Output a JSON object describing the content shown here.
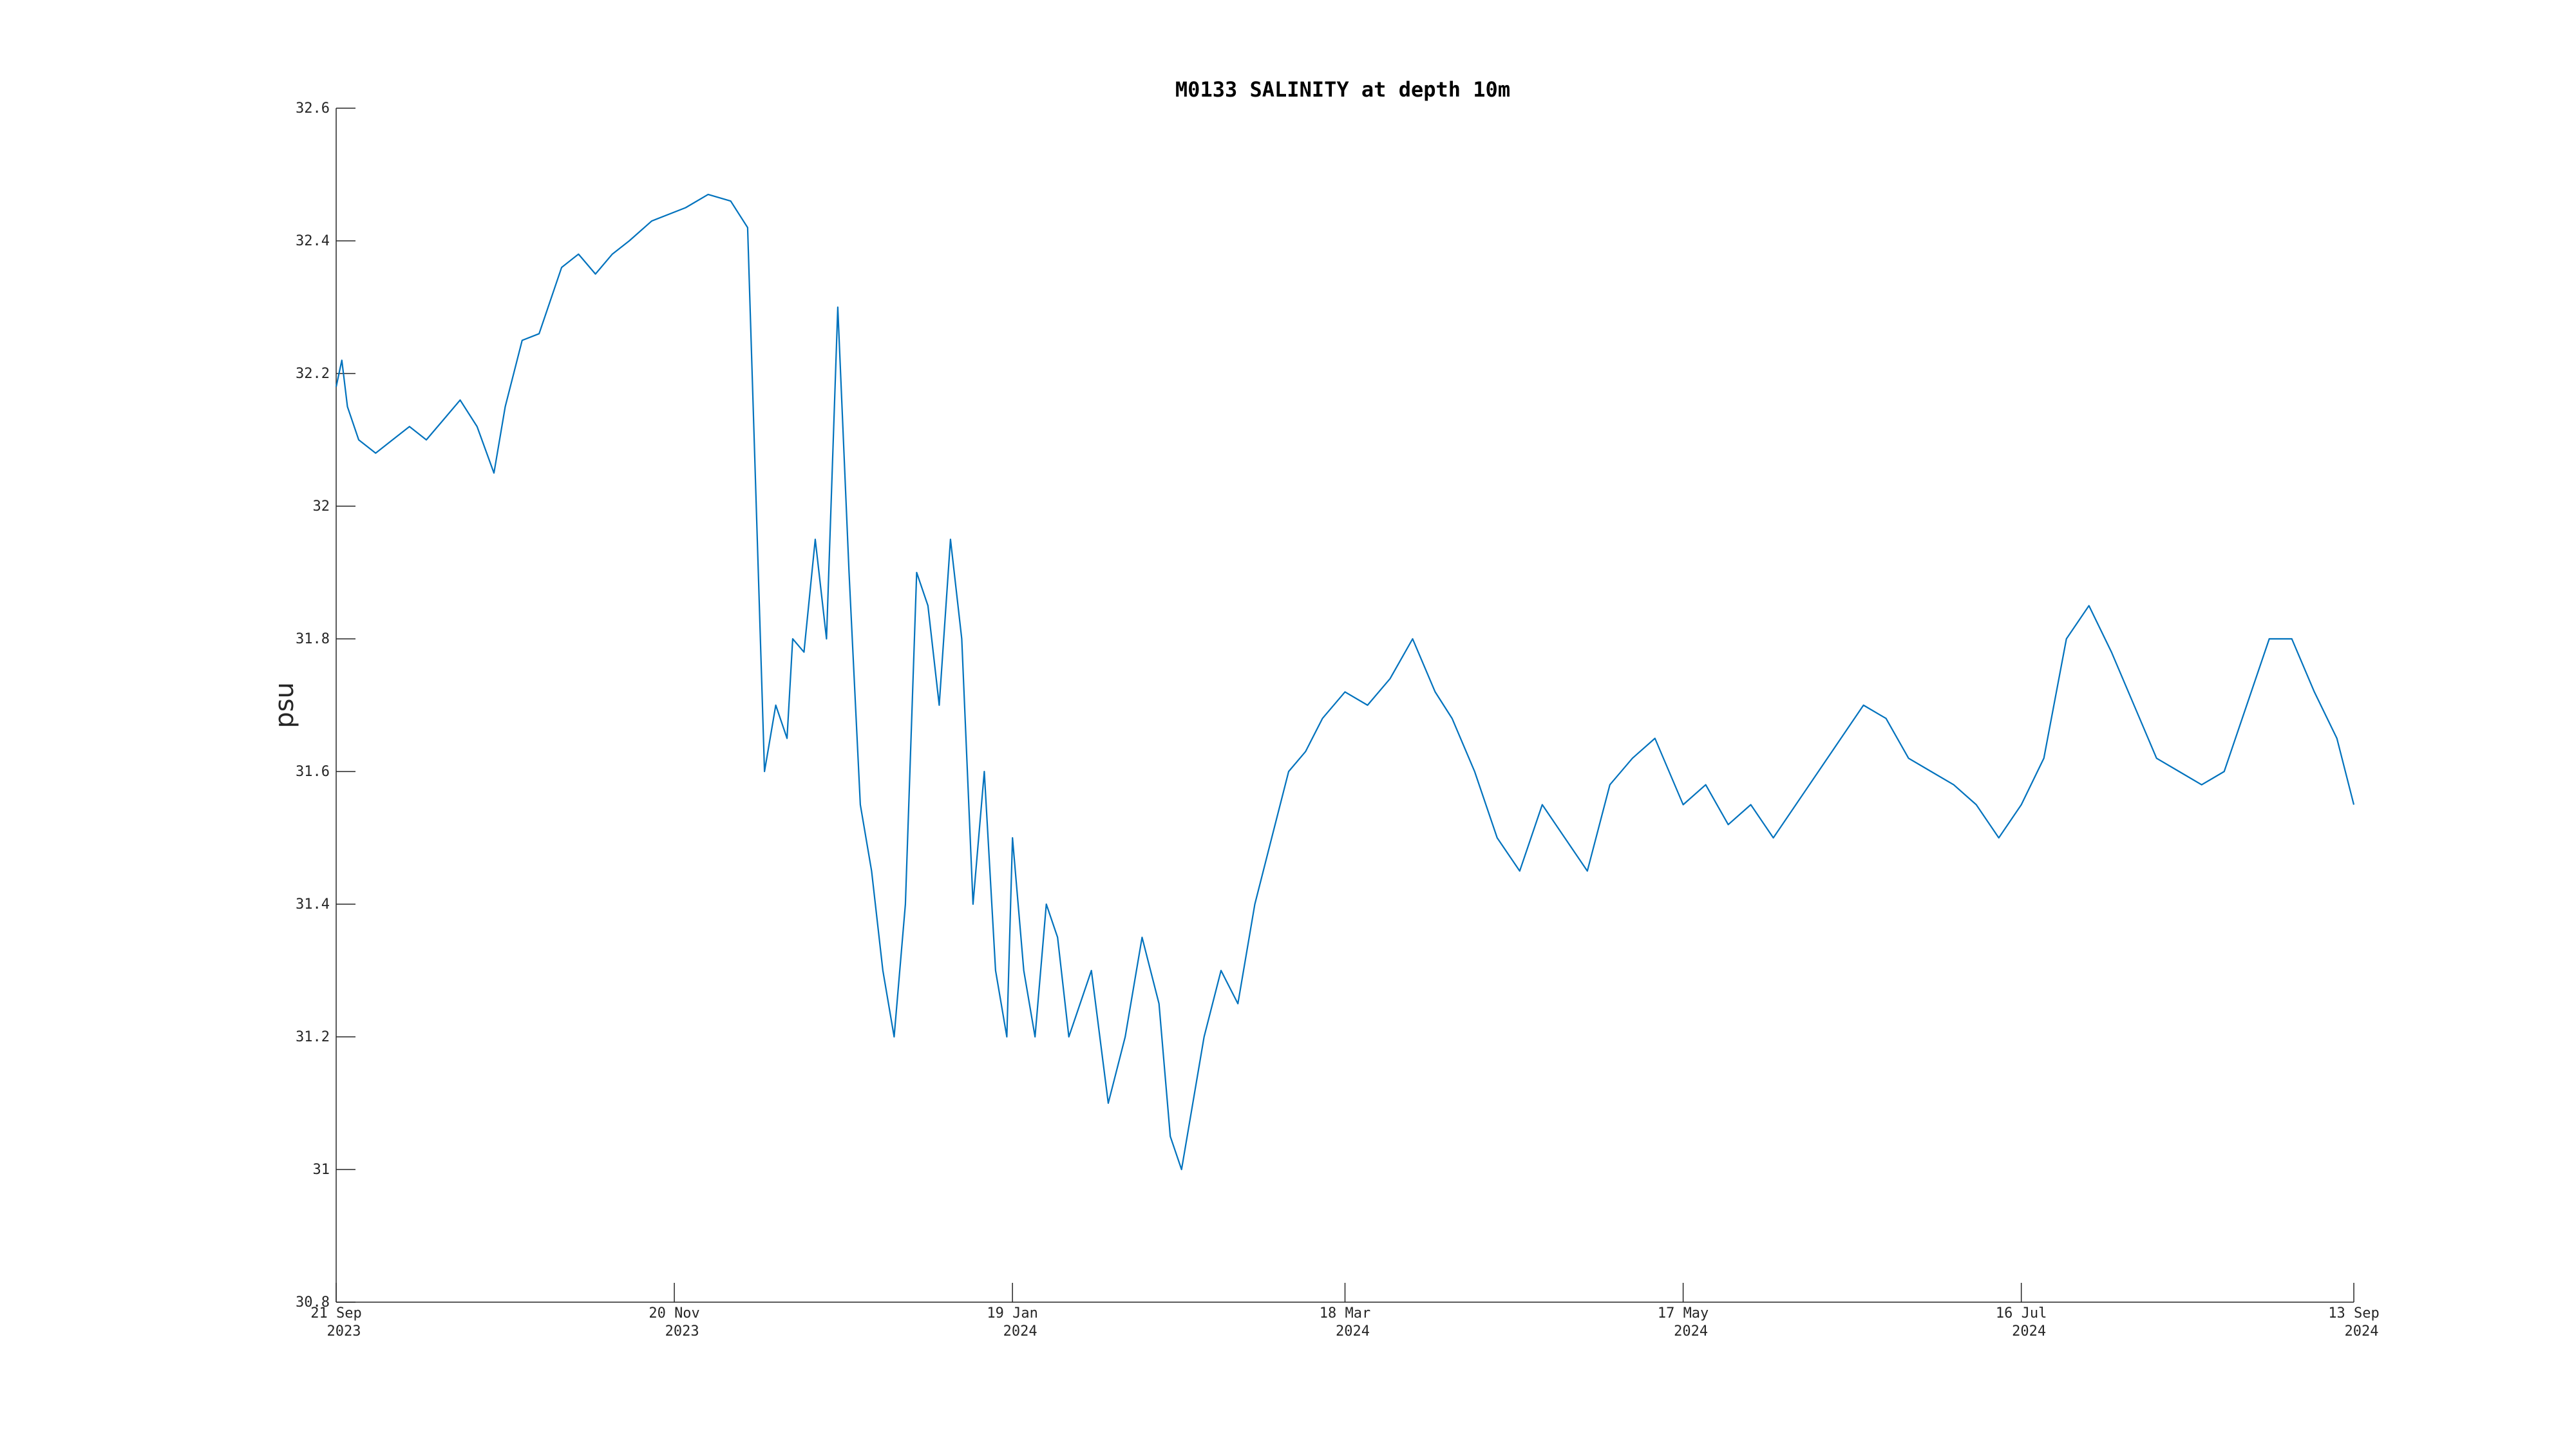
{
  "chart_data": {
    "type": "line",
    "title": "M0133 SALINITY at depth 10m",
    "xlabel": "",
    "ylabel": "psu",
    "xlim": [
      "2023-09-21",
      "2024-09-13"
    ],
    "ylim": [
      30.8,
      32.6
    ],
    "grid": false,
    "line_color": "#0072BD",
    "y_ticks": [
      {
        "value": 30.8,
        "label": "30.8"
      },
      {
        "value": 31.0,
        "label": "31"
      },
      {
        "value": 31.2,
        "label": "31.2"
      },
      {
        "value": 31.4,
        "label": "31.4"
      },
      {
        "value": 31.6,
        "label": "31.6"
      },
      {
        "value": 31.8,
        "label": "31.8"
      },
      {
        "value": 32.0,
        "label": "32"
      },
      {
        "value": 32.2,
        "label": "32.2"
      },
      {
        "value": 32.4,
        "label": "32.4"
      },
      {
        "value": 32.6,
        "label": "32.6"
      }
    ],
    "x_ticks": [
      {
        "date": "2023-09-21",
        "label": "21 Sep",
        "year": "2023"
      },
      {
        "date": "2023-11-20",
        "label": "20 Nov",
        "year": "2023"
      },
      {
        "date": "2024-01-19",
        "label": "19 Jan",
        "year": "2024"
      },
      {
        "date": "2024-03-18",
        "label": "18 Mar",
        "year": "2024"
      },
      {
        "date": "2024-05-17",
        "label": "17 May",
        "year": "2024"
      },
      {
        "date": "2024-07-16",
        "label": "16 Jul",
        "year": "2024"
      },
      {
        "date": "2024-09-13",
        "label": "13 Sep",
        "year": "2024"
      }
    ],
    "series": [
      {
        "x": [
          "2023-09-21",
          "2023-09-22",
          "2023-09-23",
          "2023-09-25",
          "2023-09-28",
          "2023-10-01",
          "2023-10-04",
          "2023-10-07",
          "2023-10-10",
          "2023-10-13",
          "2023-10-16",
          "2023-10-19",
          "2023-10-21",
          "2023-10-24",
          "2023-10-27",
          "2023-10-31",
          "2023-11-03",
          "2023-11-06",
          "2023-11-09",
          "2023-11-12",
          "2023-11-16",
          "2023-11-22",
          "2023-11-26",
          "2023-11-30",
          "2023-12-03",
          "2023-12-06",
          "2023-12-08",
          "2023-12-10",
          "2023-12-11",
          "2023-12-13",
          "2023-12-15",
          "2023-12-17",
          "2023-12-19",
          "2023-12-21",
          "2023-12-23",
          "2023-12-25",
          "2023-12-27",
          "2023-12-29",
          "2023-12-31",
          "2024-01-02",
          "2024-01-04",
          "2024-01-06",
          "2024-01-08",
          "2024-01-10",
          "2024-01-12",
          "2024-01-14",
          "2024-01-16",
          "2024-01-18",
          "2024-01-19",
          "2024-01-21",
          "2024-01-23",
          "2024-01-25",
          "2024-01-27",
          "2024-01-29",
          "2024-01-31",
          "2024-02-02",
          "2024-02-05",
          "2024-02-08",
          "2024-02-11",
          "2024-02-14",
          "2024-02-16",
          "2024-02-18",
          "2024-02-20",
          "2024-02-22",
          "2024-02-25",
          "2024-02-28",
          "2024-03-02",
          "2024-03-05",
          "2024-03-08",
          "2024-03-11",
          "2024-03-14",
          "2024-03-18",
          "2024-03-22",
          "2024-03-26",
          "2024-03-30",
          "2024-04-03",
          "2024-04-06",
          "2024-04-10",
          "2024-04-14",
          "2024-04-18",
          "2024-04-22",
          "2024-04-26",
          "2024-04-30",
          "2024-05-04",
          "2024-05-08",
          "2024-05-12",
          "2024-05-17",
          "2024-05-21",
          "2024-05-25",
          "2024-05-29",
          "2024-06-02",
          "2024-06-06",
          "2024-06-10",
          "2024-06-14",
          "2024-06-18",
          "2024-06-22",
          "2024-06-26",
          "2024-06-30",
          "2024-07-04",
          "2024-07-08",
          "2024-07-12",
          "2024-07-16",
          "2024-07-20",
          "2024-07-24",
          "2024-07-28",
          "2024-08-01",
          "2024-08-05",
          "2024-08-09",
          "2024-08-13",
          "2024-08-17",
          "2024-08-21",
          "2024-08-25",
          "2024-08-29",
          "2024-09-02",
          "2024-09-06",
          "2024-09-10",
          "2024-09-13"
        ],
        "y": [
          32.18,
          32.22,
          32.15,
          32.1,
          32.08,
          32.1,
          32.12,
          32.1,
          32.13,
          32.16,
          32.12,
          32.05,
          32.15,
          32.25,
          32.26,
          32.36,
          32.38,
          32.35,
          32.38,
          32.4,
          32.43,
          32.45,
          32.47,
          32.46,
          32.42,
          31.6,
          31.7,
          31.65,
          31.8,
          31.78,
          31.95,
          31.8,
          32.3,
          31.9,
          31.55,
          31.45,
          31.3,
          31.2,
          31.4,
          31.9,
          31.85,
          31.7,
          31.95,
          31.8,
          31.4,
          31.6,
          31.3,
          31.2,
          31.5,
          31.3,
          31.2,
          31.4,
          31.35,
          31.2,
          31.25,
          31.3,
          31.1,
          31.2,
          31.35,
          31.25,
          31.05,
          31.0,
          31.1,
          31.2,
          31.3,
          31.25,
          31.4,
          31.5,
          31.6,
          31.63,
          31.68,
          31.72,
          31.7,
          31.74,
          31.8,
          31.72,
          31.68,
          31.6,
          31.5,
          31.45,
          31.55,
          31.5,
          31.45,
          31.58,
          31.62,
          31.65,
          31.55,
          31.58,
          31.52,
          31.55,
          31.5,
          31.55,
          31.6,
          31.65,
          31.7,
          31.68,
          31.62,
          31.6,
          31.58,
          31.55,
          31.5,
          31.55,
          31.62,
          31.8,
          31.85,
          31.78,
          31.7,
          31.62,
          31.6,
          31.58,
          31.6,
          31.7,
          31.8,
          31.8,
          31.72,
          31.65,
          31.55
        ]
      }
    ]
  }
}
